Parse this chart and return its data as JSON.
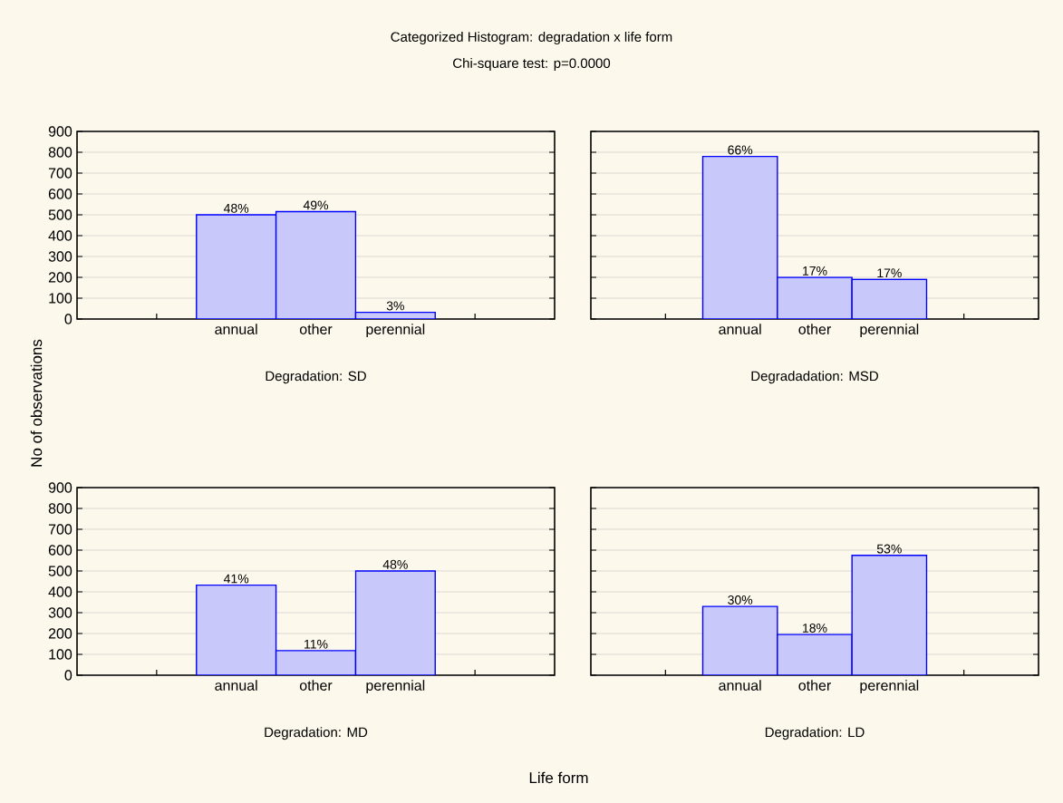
{
  "chart_data": [
    {
      "type": "other",
      "title": "Categorized Histogram: degradation x life form",
      "subtitle": "Chi-square test: p=0.0000",
      "xlabel": "Life form",
      "ylabel": "No of observations"
    },
    {
      "type": "bar",
      "title": "Degradation: SD",
      "categories": [
        null,
        "annual",
        "other",
        "perennial",
        null
      ],
      "values": [
        null,
        500,
        515,
        32,
        null
      ],
      "color": "#c8c8fa",
      "ylim": [
        0,
        900
      ],
      "yticks": [
        0,
        100,
        200,
        300,
        400,
        500,
        600,
        700,
        800,
        900
      ],
      "grid": "y",
      "annotations": [
        {
          "text": "48%",
          "x": "annual",
          "y": 500
        },
        {
          "text": "49%",
          "x": "other",
          "y": 515
        },
        {
          "text": "3%",
          "x": "perennial",
          "y": 32
        }
      ]
    },
    {
      "type": "bar",
      "title": "Degradadation: MSD",
      "categories": [
        null,
        "annual",
        "other",
        "perennial",
        null
      ],
      "values": [
        null,
        780,
        200,
        190,
        null
      ],
      "color": "#c8c8fa",
      "ylim": [
        0,
        900
      ],
      "yticks": [
        0,
        100,
        200,
        300,
        400,
        500,
        600,
        700,
        800,
        900
      ],
      "grid": "y",
      "tick_labels": "x",
      "annotations": [
        {
          "text": "66%",
          "x": "annual",
          "y": 780
        },
        {
          "text": "17%",
          "x": "other",
          "y": 200
        },
        {
          "text": "17%",
          "x": "perennial",
          "y": 190
        }
      ]
    },
    {
      "type": "bar",
      "title": "Degradation: MD",
      "categories": [
        null,
        "annual",
        "other",
        "perennial",
        null
      ],
      "values": [
        null,
        432,
        118,
        500,
        null
      ],
      "color": "#c8c8fa",
      "ylim": [
        0,
        900
      ],
      "yticks": [
        0,
        100,
        200,
        300,
        400,
        500,
        600,
        700,
        800,
        900
      ],
      "grid": "y",
      "annotations": [
        {
          "text": "41%",
          "x": "annual",
          "y": 432
        },
        {
          "text": "11%",
          "x": "other",
          "y": 118
        },
        {
          "text": "48%",
          "x": "perennial",
          "y": 500
        }
      ]
    },
    {
      "type": "bar",
      "title": "Degradation: LD",
      "categories": [
        null,
        "annual",
        "other",
        "perennial",
        null
      ],
      "values": [
        null,
        330,
        195,
        575,
        null
      ],
      "color": "#c8c8fa",
      "ylim": [
        0,
        900
      ],
      "yticks": [
        0,
        100,
        200,
        300,
        400,
        500,
        600,
        700,
        800,
        900
      ],
      "grid": "y",
      "tick_labels": "x",
      "annotations": [
        {
          "text": "30%",
          "x": "annual",
          "y": 330
        },
        {
          "text": "18%",
          "x": "other",
          "y": 195
        },
        {
          "text": "53%",
          "x": "perennial",
          "y": 575
        }
      ]
    }
  ]
}
